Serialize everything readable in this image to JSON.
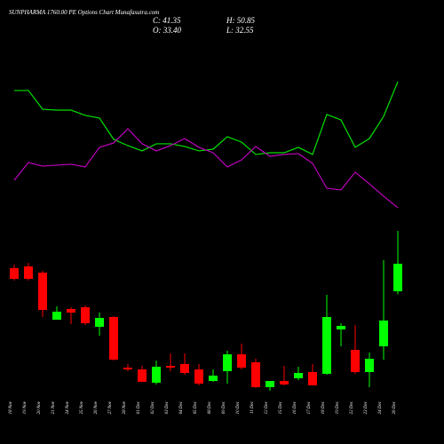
{
  "header": {
    "title": "SUNPHARMA 1760.00 PE Options Chart Munafasutra.com",
    "close": "C: 41.35",
    "high": "H: 50.85",
    "open": "O: 33.40",
    "low": "L: 32.55"
  },
  "chart_data": [
    {
      "type": "line",
      "ylim": [
        0,
        100
      ],
      "series": [
        {
          "color": "#00e000",
          "values": [
            86.3,
            86.3,
            73.1,
            72.5,
            72.5,
            68.8,
            66.9,
            51.9,
            47.5,
            43.8,
            48.8,
            48.8,
            46.9,
            43.8,
            45,
            53.8,
            50,
            41.3,
            42.5,
            42.5,
            46.3,
            41.3,
            69.4,
            65.6,
            46.3,
            52.5,
            68.1,
            92.5
          ]
        },
        {
          "color": "#c000c0",
          "values": [
            23.1,
            35.6,
            33.1,
            33.8,
            34.4,
            32.5,
            46.3,
            49.4,
            59.4,
            48.8,
            43.8,
            47.5,
            52.5,
            46.3,
            42.5,
            32.5,
            37.5,
            46.9,
            40,
            41.3,
            41.9,
            35,
            17.5,
            16.3,
            28.8,
            20.6,
            11.9,
            3.8
          ]
        }
      ]
    },
    {
      "type": "candlestick",
      "ylim": [
        3,
        53
      ],
      "up_color": "#00ff00",
      "down_color": "#ff0000",
      "categories": [
        "18 Nov",
        "19 Nov",
        "20 Nov",
        "21 Nov",
        "24 Nov",
        "25 Nov",
        "26 Nov",
        "27 Nov",
        "28 Nov",
        "01 Dec",
        "02 Dec",
        "03 Dec",
        "04 Dec",
        "05 Dec",
        "08 Dec",
        "09 Dec",
        "10 Dec",
        "11 Dec",
        "12 Dec",
        "15 Dec",
        "16 Dec",
        "17 Dec",
        "18 Dec",
        "19 Dec",
        "22 Dec",
        "23 Dec",
        "24 Dec",
        "26 Dec"
      ],
      "open": [
        40.07,
        40.58,
        38.78,
        25.19,
        28.27,
        28.78,
        23.14,
        25.96,
        11.34,
        10.83,
        6.98,
        11.85,
        12.37,
        10.83,
        7.49,
        10.31,
        15.19,
        12.88,
        5.7,
        7.49,
        8.27,
        10.06,
        9.55,
        22.37,
        16.47,
        10.06,
        17.5,
        33.4
      ],
      "high": [
        41.09,
        41.6,
        39.3,
        29.04,
        28.78,
        29.3,
        27.24,
        26.22,
        12.37,
        11.85,
        13.39,
        15.44,
        15.44,
        12.37,
        10.83,
        16.21,
        18.27,
        13.9,
        7.49,
        11.85,
        11.6,
        12.37,
        32.37,
        24.17,
        23.65,
        15.7,
        42.37,
        50.85
      ],
      "low": [
        36.48,
        36.48,
        25.96,
        25.19,
        23.91,
        23.65,
        20.57,
        13.39,
        10.31,
        7.24,
        6.47,
        10.31,
        9.29,
        6.21,
        7.24,
        6.72,
        10.83,
        5.44,
        4.67,
        6.21,
        7.75,
        6.21,
        9.29,
        17.5,
        9.55,
        5.7,
        13.65,
        32.55
      ],
      "close": [
        36.99,
        36.99,
        28.01,
        27.5,
        27.24,
        24.17,
        25.7,
        13.65,
        10.83,
        7.24,
        11.6,
        11.34,
        9.8,
        6.72,
        9.03,
        15.19,
        11.34,
        5.7,
        7.49,
        6.47,
        9.8,
        6.21,
        25.96,
        23.4,
        10.06,
        13.9,
        24.94,
        41.35
      ]
    }
  ]
}
